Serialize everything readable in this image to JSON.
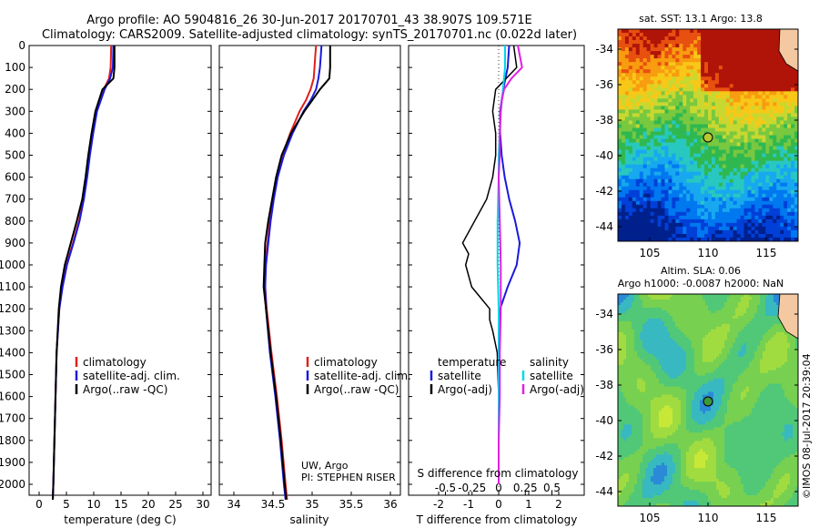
{
  "header": {
    "line1": "Argo profile: AO 5904816_26 30-Jun-2017 20170701_43 38.907S 109.571E",
    "line2": "Climatology: CARS2009. Satellite-adjusted climatology: synTS_20170701.nc (0.022d later)"
  },
  "colors": {
    "clim": "#e0201c",
    "sat": "#1a1adc",
    "argo": "#000000",
    "sat_s": "#00d8e8",
    "argo_s": "#e020e0"
  },
  "depth_ticks": [
    "0",
    "100",
    "200",
    "300",
    "400",
    "500",
    "600",
    "700",
    "800",
    "900",
    "1000",
    "1100",
    "1200",
    "1300",
    "1400",
    "1500",
    "1600",
    "1700",
    "1800",
    "1900",
    "2000"
  ],
  "panel_temp": {
    "xlabel": "temperature (deg C)",
    "xticks": [
      "0",
      "5",
      "10",
      "15",
      "20",
      "25",
      "30"
    ],
    "legend": [
      "climatology",
      "satellite-adj. clim.",
      "Argo(..raw -QC)"
    ]
  },
  "panel_sal": {
    "xlabel": "salinity",
    "xticks": [
      "34",
      "34.5",
      "35",
      "35.5",
      "36"
    ],
    "legend": [
      "climatology",
      "satellite-adj. clim.",
      "Argo(..raw -QC)"
    ],
    "credit1": "UW, Argo",
    "credit2": "PI: STEPHEN RISER"
  },
  "panel_diff": {
    "xlabel": "T difference from climatology",
    "xticks": [
      "-2",
      "-1",
      "0",
      "1",
      "2"
    ],
    "stitle": "S difference from climatology",
    "sticks": [
      "-0.5",
      "-0.25",
      "0",
      "0.25",
      "0.5"
    ],
    "legend_t_title": "temperature",
    "legend_t": [
      "satellite",
      "Argo(-adj)"
    ],
    "legend_s_title": "salinity",
    "legend_s": [
      "satellite",
      "Argo(-adj)"
    ]
  },
  "map_sst": {
    "title": "sat. SST: 13.1 Argo: 13.8",
    "yticks": [
      "-34",
      "-36",
      "-38",
      "-40",
      "-42",
      "-44"
    ],
    "xticks": [
      "105",
      "110",
      "115"
    ]
  },
  "map_sla": {
    "title1": "Altim. SLA: 0.06",
    "title2": "Argo h1000: -0.0087 h2000: NaN",
    "yticks": [
      "-34",
      "-36",
      "-38",
      "-40",
      "-42",
      "-44"
    ],
    "xticks": [
      "105",
      "110",
      "115"
    ]
  },
  "stamp": "©IMOS 08-Jul-2017 20:39:04",
  "chart_data": [
    {
      "type": "line",
      "title": "",
      "xlabel": "temperature (deg C)",
      "ylabel": "",
      "xlim": [
        -2,
        31
      ],
      "ylim": [
        2080,
        0
      ],
      "series": [
        {
          "name": "climatology",
          "depth": [
            0,
            100,
            150,
            200,
            300,
            400,
            500,
            600,
            700,
            800,
            900,
            1000,
            1100,
            1200,
            1400,
            1600,
            1800,
            2000,
            2070
          ],
          "values": [
            13.2,
            13.1,
            12.8,
            11.8,
            10.5,
            9.8,
            9.2,
            8.7,
            8.1,
            7.3,
            6.2,
            5.0,
            4.2,
            3.7,
            3.2,
            3.0,
            2.8,
            2.6,
            2.5
          ]
        },
        {
          "name": "satellite-adj. clim.",
          "depth": [
            0,
            100,
            150,
            200,
            300,
            400,
            500,
            600,
            700,
            800,
            900,
            1000,
            1100,
            1200,
            1400,
            1600,
            1800,
            2000,
            2070
          ],
          "values": [
            13.6,
            13.5,
            13.0,
            12.0,
            10.6,
            9.9,
            9.3,
            8.8,
            8.2,
            7.4,
            6.3,
            5.1,
            4.3,
            3.7,
            3.2,
            3.0,
            2.8,
            2.6,
            2.5
          ]
        },
        {
          "name": "Argo(..raw -QC)",
          "depth": [
            0,
            100,
            150,
            200,
            300,
            400,
            500,
            600,
            700,
            800,
            900,
            1000,
            1100,
            1200,
            1400,
            1600,
            1800,
            2000,
            2070
          ],
          "values": [
            13.8,
            13.8,
            13.6,
            11.6,
            10.3,
            9.6,
            9.0,
            8.5,
            7.9,
            6.9,
            5.8,
            4.7,
            4.0,
            3.6,
            3.2,
            3.0,
            2.8,
            2.6,
            2.5
          ]
        }
      ]
    },
    {
      "type": "line",
      "title": "",
      "xlabel": "salinity",
      "ylabel": "",
      "xlim": [
        33.85,
        36.05
      ],
      "ylim": [
        2080,
        0
      ],
      "series": [
        {
          "name": "climatology",
          "depth": [
            0,
            50,
            100,
            150,
            200,
            250,
            300,
            400,
            500,
            600,
            700,
            800,
            900,
            1000,
            1100,
            1200,
            1400,
            1600,
            1800,
            2000,
            2070
          ],
          "values": [
            35.05,
            35.04,
            35.03,
            35.02,
            34.98,
            34.92,
            34.84,
            34.72,
            34.62,
            34.55,
            34.5,
            34.46,
            34.43,
            34.4,
            34.4,
            34.42,
            34.48,
            34.55,
            34.61,
            34.66,
            34.68
          ]
        },
        {
          "name": "satellite-adj. clim.",
          "depth": [
            0,
            50,
            100,
            150,
            200,
            250,
            300,
            400,
            500,
            600,
            700,
            800,
            900,
            1000,
            1100,
            1200,
            1400,
            1600,
            1800,
            2000,
            2070
          ],
          "values": [
            35.12,
            35.11,
            35.1,
            35.08,
            35.05,
            34.98,
            34.89,
            34.75,
            34.64,
            34.56,
            34.51,
            34.47,
            34.44,
            34.41,
            34.4,
            34.41,
            34.46,
            34.53,
            34.59,
            34.64,
            34.66
          ]
        },
        {
          "name": "Argo(..raw -QC)",
          "depth": [
            0,
            50,
            100,
            150,
            200,
            250,
            300,
            400,
            500,
            600,
            700,
            800,
            900,
            1000,
            1100,
            1200,
            1400,
            1600,
            1800,
            2000,
            2070
          ],
          "values": [
            35.23,
            35.23,
            35.23,
            35.22,
            35.1,
            35.0,
            34.9,
            34.73,
            34.61,
            34.54,
            34.49,
            34.44,
            34.4,
            34.39,
            34.38,
            34.41,
            34.47,
            34.54,
            34.6,
            34.65,
            34.67
          ]
        }
      ]
    },
    {
      "type": "line",
      "title": "",
      "xlabel": "T difference from climatology",
      "ylabel": "",
      "xlim": [
        -2.5,
        2.6
      ],
      "ylim": [
        2080,
        0
      ],
      "series": [
        {
          "name": "temperature satellite",
          "depth": [
            0,
            100,
            200,
            300,
            400,
            500,
            600,
            700,
            800,
            900,
            1000,
            1100,
            1200,
            1300,
            1400,
            1600,
            1800,
            2000
          ],
          "values": [
            0.35,
            0.3,
            0.15,
            0.05,
            0.05,
            0.1,
            0.2,
            0.35,
            0.55,
            0.7,
            0.6,
            0.3,
            0.05,
            0.0,
            0.0,
            0.0,
            0.0,
            0.0
          ]
        },
        {
          "name": "temperature Argo(-adj)",
          "depth": [
            0,
            100,
            200,
            300,
            400,
            500,
            600,
            700,
            800,
            850,
            900,
            950,
            1000,
            1050,
            1100,
            1150,
            1200,
            1250,
            1300,
            1400,
            1600,
            1800,
            2000
          ],
          "values": [
            0.5,
            0.6,
            -0.1,
            -0.2,
            -0.1,
            -0.1,
            -0.2,
            -0.4,
            -0.8,
            -1.0,
            -1.2,
            -1.0,
            -1.1,
            -1.0,
            -0.9,
            -0.6,
            -0.3,
            -0.3,
            -0.2,
            -0.05,
            0.0,
            0.0,
            0.0
          ]
        }
      ]
    },
    {
      "type": "line",
      "title": "",
      "xlabel": "S difference from climatology",
      "ylabel": "",
      "xlim": [
        -0.7,
        0.65
      ],
      "ylim": [
        2080,
        0
      ],
      "series": [
        {
          "name": "salinity satellite",
          "depth": [
            0,
            100,
            200,
            300,
            400,
            500,
            600,
            800,
            1000,
            1200,
            1400,
            1600,
            1800,
            2000
          ],
          "values": [
            0.06,
            0.06,
            0.04,
            0.02,
            0.01,
            0.0,
            0.0,
            -0.01,
            -0.01,
            0.0,
            0.0,
            0.0,
            0.0,
            0.0
          ]
        },
        {
          "name": "salinity Argo(-adj)",
          "depth": [
            0,
            50,
            100,
            150,
            200,
            250,
            300,
            400,
            500,
            600,
            800,
            1000,
            1200,
            1400,
            1600,
            1800,
            2000
          ],
          "values": [
            0.18,
            0.2,
            0.22,
            0.12,
            0.05,
            0.03,
            0.02,
            0.01,
            0.01,
            0.0,
            0.01,
            0.02,
            0.02,
            0.01,
            0.01,
            0.0,
            0.0
          ]
        }
      ]
    }
  ]
}
